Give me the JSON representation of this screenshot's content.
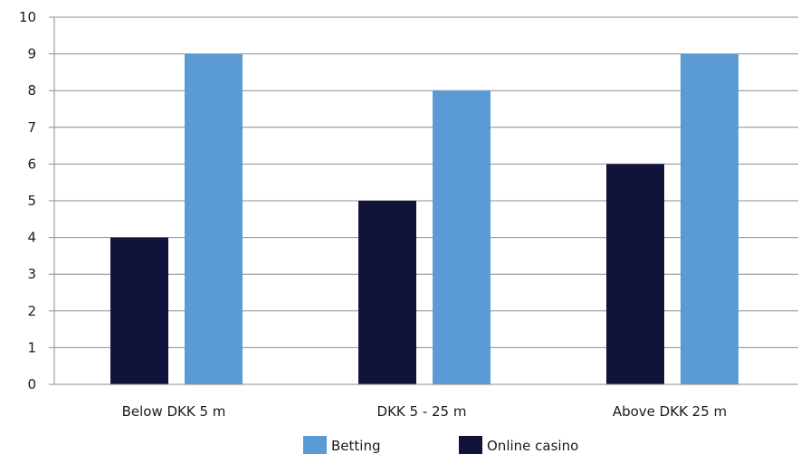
{
  "chart_data": {
    "type": "bar",
    "categories": [
      "Below DKK 5 m",
      "DKK 5 - 25 m",
      "Above DKK 25 m"
    ],
    "series": [
      {
        "name": "Online casino",
        "values": [
          4,
          5,
          6
        ],
        "color": "#12133a"
      },
      {
        "name": "Betting",
        "values": [
          9,
          8,
          9
        ],
        "color": "#5b9bd5"
      }
    ],
    "legend_order": [
      "Betting",
      "Online casino"
    ],
    "legend_position": "bottom",
    "ylim": [
      0,
      10
    ],
    "yticks": [
      "0",
      "1",
      "2",
      "3",
      "4",
      "5",
      "6",
      "7",
      "8",
      "9",
      "10"
    ],
    "grid": true,
    "title": "",
    "xlabel": "",
    "ylabel": ""
  }
}
